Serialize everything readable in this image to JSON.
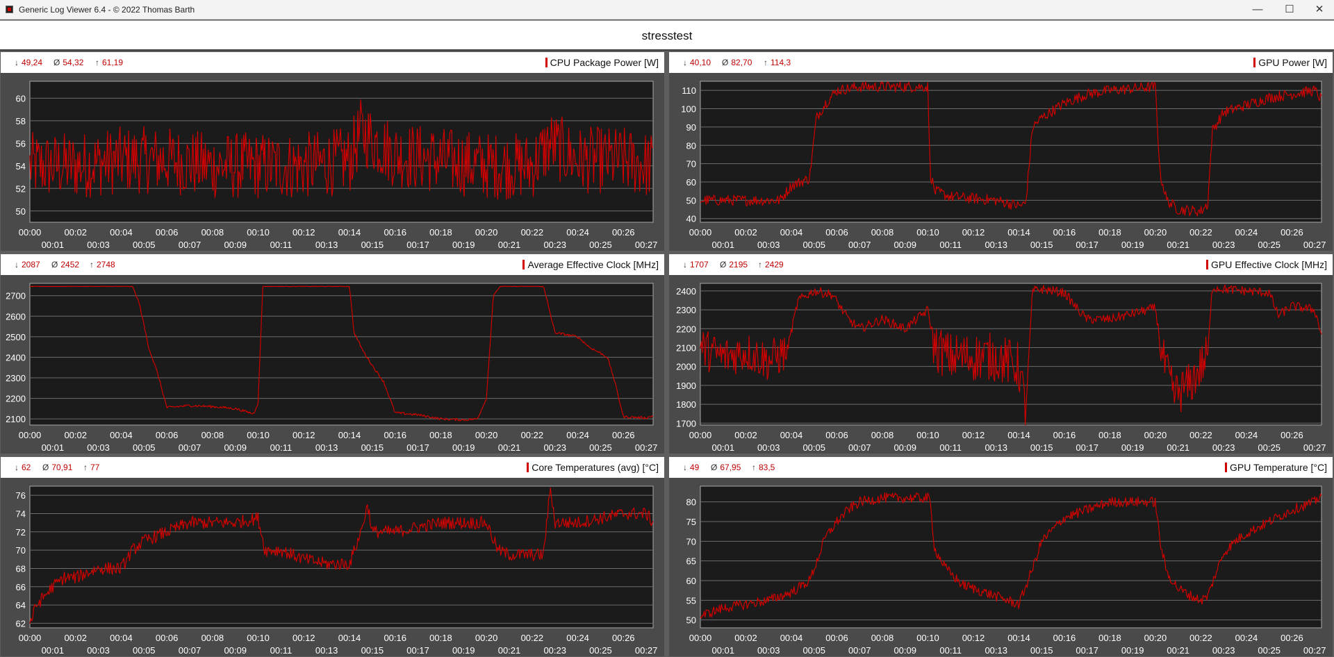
{
  "window": {
    "title": "Generic Log Viewer 6.4 - © 2022 Thomas Barth",
    "min": "—",
    "max": "☐",
    "close": "✕"
  },
  "header": {
    "title": "stresstest"
  },
  "x_ticks": {
    "upper": [
      "00:00",
      "00:02",
      "00:04",
      "00:06",
      "00:08",
      "00:10",
      "00:12",
      "00:14",
      "00:16",
      "00:18",
      "00:20",
      "00:22",
      "00:24",
      "00:26"
    ],
    "lower": [
      "00:01",
      "00:03",
      "00:05",
      "00:07",
      "00:09",
      "00:11",
      "00:13",
      "00:15",
      "00:17",
      "00:19",
      "00:21",
      "00:23",
      "00:25",
      "00:27"
    ]
  },
  "panels": [
    {
      "key": "cpu_power",
      "title": "CPU Package Power [W]",
      "stats": {
        "min": "49,24",
        "avg": "54,32",
        "max": "61,19"
      }
    },
    {
      "key": "gpu_power",
      "title": "GPU Power [W]",
      "stats": {
        "min": "40,10",
        "avg": "82,70",
        "max": "114,3"
      }
    },
    {
      "key": "cpu_clock",
      "title": "Average Effective Clock [MHz]",
      "stats": {
        "min": "2087",
        "avg": "2452",
        "max": "2748"
      }
    },
    {
      "key": "gpu_clock",
      "title": "GPU Effective Clock [MHz]",
      "stats": {
        "min": "1707",
        "avg": "2195",
        "max": "2429"
      }
    },
    {
      "key": "cpu_temp",
      "title": "Core Temperatures (avg) [°C]",
      "stats": {
        "min": "62",
        "avg": "70,91",
        "max": "77"
      }
    },
    {
      "key": "gpu_temp",
      "title": "GPU Temperature [°C]",
      "stats": {
        "min": "49",
        "avg": "67,95",
        "max": "83,5"
      }
    }
  ],
  "chart_data": [
    {
      "type": "line",
      "title": "CPU Package Power [W]",
      "x_range_minutes": [
        0,
        27.3
      ],
      "ylim": [
        49,
        61.5
      ],
      "y_ticks": [
        "50",
        "52",
        "54",
        "56",
        "58",
        "60"
      ],
      "grid": true,
      "line_color": "#d00000",
      "series": [
        {
          "x": [
            0,
            2,
            4,
            6,
            8,
            10,
            12,
            14,
            14.5,
            16,
            18,
            20,
            22,
            22.8,
            24,
            26,
            27.3
          ],
          "y": [
            54,
            54,
            54.5,
            54.5,
            54,
            54,
            54,
            54.5,
            57,
            55,
            54.5,
            54,
            54,
            56,
            54.5,
            54.5,
            54
          ]
        }
      ]
    },
    {
      "type": "line",
      "title": "GPU Power [W]",
      "x_range_minutes": [
        0,
        27.3
      ],
      "ylim": [
        38,
        115
      ],
      "y_ticks": [
        "40",
        "50",
        "60",
        "70",
        "80",
        "90",
        "100",
        "110"
      ],
      "grid": true,
      "line_color": "#d00000",
      "series": [
        {
          "x": [
            0,
            3.5,
            4,
            4.8,
            5.1,
            5.5,
            6,
            7,
            9,
            9.5,
            10,
            10.1,
            10.3,
            11,
            13,
            14,
            14.3,
            14.6,
            15,
            16,
            17,
            18,
            19,
            20,
            20.2,
            20.5,
            21,
            22,
            22.3,
            22.5,
            23,
            24,
            25,
            26,
            27,
            27.3
          ],
          "y": [
            50,
            50,
            58,
            62,
            95,
            103,
            110,
            112,
            112,
            112,
            112,
            65,
            55,
            52,
            50,
            47,
            48,
            90,
            95,
            103,
            108,
            110,
            111,
            112,
            65,
            50,
            45,
            44,
            48,
            88,
            98,
            102,
            106,
            108,
            110,
            105
          ]
        }
      ]
    },
    {
      "type": "line",
      "title": "Average Effective Clock [MHz]",
      "x_range_minutes": [
        0,
        27.3
      ],
      "ylim": [
        2070,
        2760
      ],
      "y_ticks": [
        "2100",
        "2200",
        "2300",
        "2400",
        "2500",
        "2600",
        "2700"
      ],
      "grid": true,
      "line_color": "#d00000",
      "series": [
        {
          "x": [
            0,
            4.5,
            4.8,
            5.2,
            5.6,
            6,
            7,
            8,
            9,
            9.8,
            10,
            10.2,
            10.5,
            12,
            14,
            14.2,
            14.6,
            15,
            15.5,
            16,
            17,
            18,
            19,
            19.6,
            20,
            20.3,
            20.6,
            22,
            22.5,
            23,
            24,
            24.5,
            25,
            25.3,
            25.6,
            26,
            27,
            27.3
          ],
          "y": [
            2745,
            2745,
            2660,
            2450,
            2320,
            2155,
            2165,
            2160,
            2150,
            2125,
            2180,
            2745,
            2745,
            2745,
            2745,
            2520,
            2430,
            2360,
            2280,
            2130,
            2120,
            2100,
            2095,
            2100,
            2200,
            2700,
            2745,
            2745,
            2745,
            2520,
            2500,
            2450,
            2420,
            2400,
            2290,
            2110,
            2105,
            2115
          ]
        }
      ]
    },
    {
      "type": "line",
      "title": "GPU Effective Clock [MHz]",
      "x_range_minutes": [
        0,
        27.3
      ],
      "ylim": [
        1690,
        2440
      ],
      "y_ticks": [
        "1700",
        "1800",
        "1900",
        "2000",
        "2100",
        "2200",
        "2300",
        "2400"
      ],
      "grid": true,
      "line_color": "#d00000",
      "series": [
        {
          "x": [
            0,
            1,
            2,
            3,
            3.8,
            4.3,
            5,
            5.8,
            6.5,
            7,
            8,
            9,
            10,
            10.3,
            11,
            12,
            13,
            14,
            14.3,
            14.6,
            15,
            16,
            16.6,
            17,
            18,
            19,
            20,
            20.3,
            20.8,
            21.5,
            22,
            22.3,
            22.5,
            23,
            24,
            25,
            25.4,
            26,
            27,
            27.3
          ],
          "y": [
            2100,
            2050,
            2080,
            2030,
            2080,
            2350,
            2400,
            2380,
            2250,
            2200,
            2250,
            2200,
            2300,
            2100,
            2050,
            2050,
            2050,
            2000,
            1760,
            2400,
            2410,
            2390,
            2300,
            2250,
            2250,
            2280,
            2310,
            2050,
            1850,
            1900,
            2000,
            2060,
            2420,
            2410,
            2400,
            2390,
            2270,
            2320,
            2300,
            2170
          ]
        }
      ]
    },
    {
      "type": "line",
      "title": "Core Temperatures (avg) [°C]",
      "x_range_minutes": [
        0,
        27.3
      ],
      "ylim": [
        61.5,
        77
      ],
      "y_ticks": [
        "62",
        "64",
        "66",
        "68",
        "70",
        "72",
        "74",
        "76"
      ],
      "grid": true,
      "line_color": "#d00000",
      "series": [
        {
          "x": [
            0,
            0.3,
            1,
            1.5,
            2,
            3,
            4,
            4.5,
            5,
            6,
            7,
            8,
            9,
            10,
            10.3,
            11,
            12,
            13,
            14,
            14.5,
            14.8,
            15,
            16,
            18,
            20,
            20.5,
            21,
            22,
            22.5,
            22.8,
            23,
            23.5,
            24,
            25,
            26,
            27,
            27.3
          ],
          "y": [
            62,
            64,
            66,
            67,
            67,
            68,
            68,
            70,
            71,
            72,
            73,
            73,
            73,
            73.5,
            70,
            70,
            69,
            68.5,
            68.5,
            72,
            75,
            72,
            72,
            73,
            73,
            70,
            69.5,
            69.5,
            69.5,
            77,
            73,
            73,
            73,
            73.5,
            74,
            74,
            73
          ]
        }
      ]
    },
    {
      "type": "line",
      "title": "GPU Temperature [°C]",
      "x_range_minutes": [
        0,
        27.3
      ],
      "ylim": [
        48,
        84
      ],
      "y_ticks": [
        "50",
        "55",
        "60",
        "65",
        "70",
        "75",
        "80"
      ],
      "grid": true,
      "line_color": "#d00000",
      "series": [
        {
          "x": [
            0,
            1,
            2,
            3,
            4,
            4.8,
            5,
            5.5,
            6,
            6.5,
            7,
            8,
            9,
            10,
            10.1,
            10.3,
            10.8,
            11.5,
            12,
            13,
            14,
            14.2,
            14.6,
            15,
            16,
            17,
            18,
            19,
            19.5,
            20,
            20.2,
            20.5,
            21,
            21.6,
            22,
            22.3,
            22.6,
            23,
            23.5,
            24,
            25,
            26,
            27,
            27.3
          ],
          "y": [
            51,
            53,
            54,
            55,
            57,
            60,
            63,
            71,
            75,
            78,
            80,
            81,
            81,
            81,
            80,
            68,
            63,
            59,
            58,
            56,
            54,
            57,
            63,
            70,
            76,
            78,
            80,
            80,
            80,
            80,
            70,
            62,
            58,
            56,
            55,
            56,
            61,
            67,
            70,
            72,
            75,
            78,
            80,
            82
          ]
        }
      ]
    }
  ]
}
